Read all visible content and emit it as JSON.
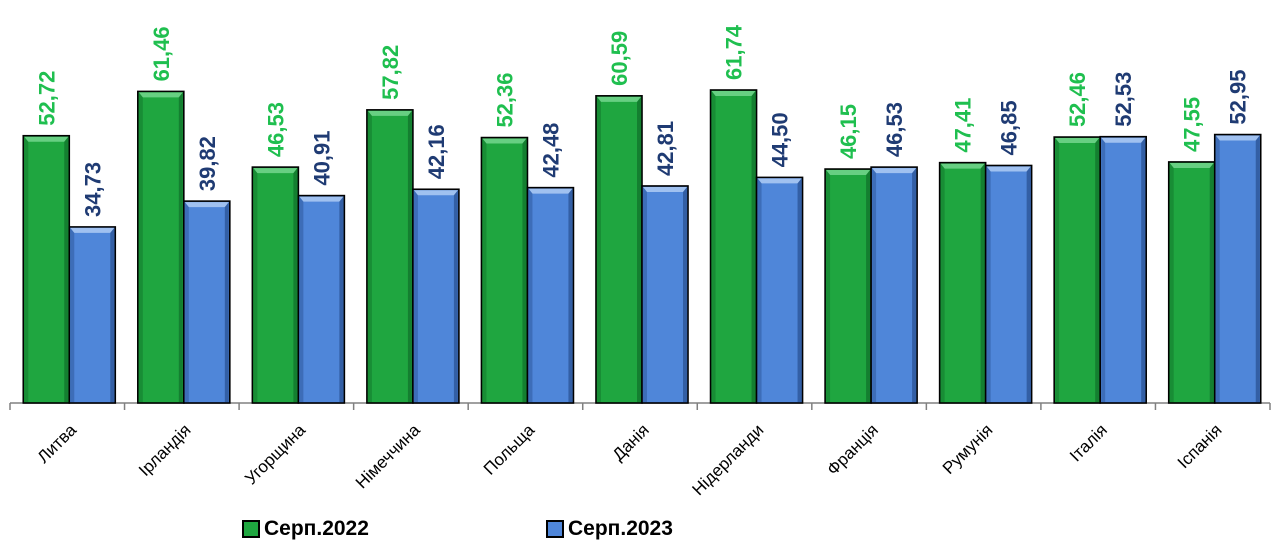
{
  "chart_data": {
    "type": "bar",
    "categories": [
      "Литва",
      "Ірландія",
      "Угорщина",
      "Німеччина",
      "Польща",
      "Данія",
      "Нідерланди",
      "Франція",
      "Румунія",
      "Італія",
      "Іспанія"
    ],
    "series": [
      {
        "name": "Серп.2022",
        "values": [
          52.72,
          61.46,
          46.53,
          57.82,
          52.36,
          60.59,
          61.74,
          46.15,
          47.41,
          52.46,
          47.55
        ],
        "labels": [
          "52,72",
          "61,46",
          "46,53",
          "57,82",
          "52,36",
          "60,59",
          "61,74",
          "46,15",
          "47,41",
          "52,46",
          "47,55"
        ],
        "color": "#1fa640",
        "label_color": "#1fbf4f"
      },
      {
        "name": "Серп.2023",
        "values": [
          34.73,
          39.82,
          40.91,
          42.16,
          42.48,
          42.81,
          44.5,
          46.53,
          46.85,
          52.53,
          52.95
        ],
        "labels": [
          "34,73",
          "39,82",
          "40,91",
          "42,16",
          "42,48",
          "42,81",
          "44,50",
          "46,53",
          "46,85",
          "52,53",
          "52,95"
        ],
        "color": "#4f86d9",
        "label_color": "#1f3b73"
      }
    ],
    "ylim": [
      0,
      70
    ],
    "grid": false,
    "legend": "bottom"
  }
}
